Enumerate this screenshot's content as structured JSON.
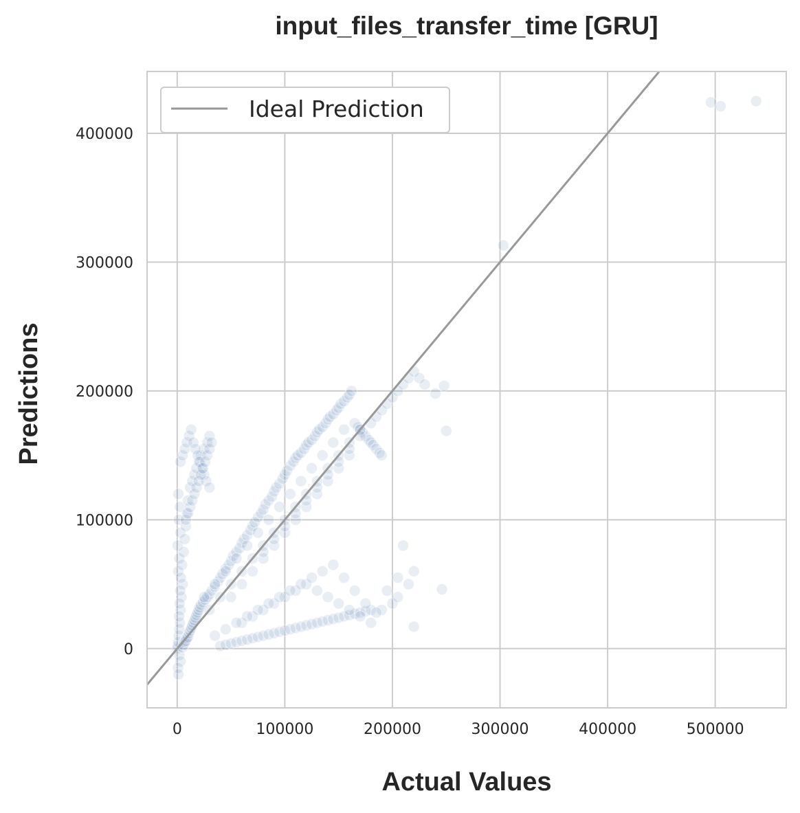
{
  "chart_data": {
    "type": "scatter",
    "title": "input_files_transfer_time [GRU]",
    "xlabel": "Actual Values",
    "ylabel": "Predictions",
    "xlim": [
      -28000,
      566000
    ],
    "ylim": [
      -46000,
      448000
    ],
    "xticks": [
      0,
      100000,
      200000,
      300000,
      400000,
      500000
    ],
    "xtick_labels": [
      "0",
      "100000",
      "200000",
      "300000",
      "400000",
      "500000"
    ],
    "yticks": [
      0,
      100000,
      200000,
      300000,
      400000
    ],
    "ytick_labels": [
      "0",
      "100000",
      "200000",
      "300000",
      "400000"
    ],
    "grid": true,
    "legend": {
      "position": "top-left",
      "entries": [
        "Ideal Prediction"
      ]
    },
    "colors": {
      "points": "#4c72b0",
      "ideal_line": "#999999",
      "grid": "#cccccc",
      "frame": "#cccccc"
    },
    "series": [
      {
        "name": "Ideal Prediction",
        "kind": "line",
        "x": [
          -28000,
          566000
        ],
        "y": [
          -28000,
          566000
        ]
      },
      {
        "kind": "scatter",
        "point_alpha": 0.12,
        "x": [
          0,
          500,
          1000,
          1500,
          2000,
          2500,
          3000,
          4000,
          5000,
          1000,
          2000,
          500,
          3000,
          1500,
          2500,
          1000,
          2000,
          3000,
          800,
          1200,
          1800,
          2200,
          2800,
          3500,
          4500,
          6000,
          7000,
          8000,
          9000,
          10000,
          12000,
          14000,
          16000,
          18000,
          20000,
          22000,
          25000,
          28000,
          30000,
          5000,
          6000,
          7000,
          8000,
          9000,
          10000,
          11000,
          12000,
          13000,
          14000,
          15000,
          16000,
          17000,
          18000,
          19000,
          20000,
          21000,
          22000,
          24000,
          26000,
          28000,
          30000,
          32000,
          35000,
          38000,
          40000,
          42000,
          45000,
          48000,
          50000,
          52000,
          55000,
          58000,
          60000,
          62000,
          65000,
          68000,
          70000,
          72000,
          75000,
          78000,
          80000,
          82000,
          85000,
          88000,
          90000,
          92000,
          95000,
          98000,
          100000,
          102000,
          105000,
          108000,
          110000,
          112000,
          115000,
          118000,
          120000,
          122000,
          125000,
          128000,
          130000,
          132000,
          135000,
          138000,
          140000,
          142000,
          145000,
          148000,
          150000,
          152000,
          155000,
          158000,
          160000,
          162000,
          165000,
          168000,
          170000,
          172000,
          175000,
          178000,
          180000,
          182000,
          185000,
          188000,
          190000,
          40000,
          45000,
          50000,
          55000,
          60000,
          65000,
          70000,
          75000,
          80000,
          85000,
          90000,
          95000,
          100000,
          105000,
          110000,
          115000,
          120000,
          125000,
          130000,
          135000,
          140000,
          145000,
          150000,
          155000,
          160000,
          165000,
          170000,
          175000,
          180000,
          60000,
          70000,
          80000,
          90000,
          100000,
          110000,
          120000,
          130000,
          140000,
          150000,
          160000,
          170000,
          180000,
          35000,
          45000,
          55000,
          65000,
          75000,
          85000,
          95000,
          105000,
          115000,
          125000,
          135000,
          145000,
          155000,
          165000,
          175000,
          50000,
          60000,
          70000,
          80000,
          90000,
          100000,
          110000,
          120000,
          130000,
          140000,
          150000,
          160000,
          30000,
          40000,
          50000,
          60000,
          70000,
          80000,
          90000,
          100000,
          110000,
          120000,
          130000,
          140000,
          150000,
          160000,
          170000,
          25000,
          35000,
          45000,
          55000,
          65000,
          75000,
          85000,
          95000,
          105000,
          115000,
          125000,
          135000,
          145000,
          155000,
          80000,
          90000,
          100000,
          110000,
          120000,
          130000,
          140000,
          150000,
          160000,
          170000,
          180000,
          185000,
          190000,
          195000,
          200000,
          205000,
          210000,
          215000,
          220000,
          225000,
          230000,
          240000,
          248000,
          250000,
          195000,
          200000,
          205000,
          210000,
          215000,
          220000,
          205000,
          190000,
          185000,
          246000,
          220000,
          303000,
          496000,
          505000,
          538000,
          3000,
          5000,
          7000,
          9000,
          11000,
          13000,
          15000,
          17000,
          19000,
          21000,
          23000,
          25000,
          27000,
          30000,
          8000,
          10000,
          12000,
          14000,
          16000,
          18000,
          20000,
          22000,
          24000,
          26000,
          28000,
          30000,
          32000
        ],
        "y": [
          0,
          2000,
          5000,
          10000,
          15000,
          20000,
          30000,
          40000,
          50000,
          60000,
          70000,
          80000,
          90000,
          100000,
          110000,
          120000,
          -5000,
          -10000,
          -15000,
          -20000,
          25000,
          35000,
          45000,
          55000,
          65000,
          75000,
          85000,
          95000,
          105000,
          115000,
          125000,
          130000,
          135000,
          140000,
          145000,
          150000,
          155000,
          160000,
          165000,
          1000,
          3000,
          5000,
          6000,
          8000,
          9000,
          12000,
          14000,
          16000,
          18000,
          20000,
          22000,
          24000,
          26000,
          28000,
          30000,
          32000,
          34000,
          36000,
          38000,
          40000,
          42000,
          45000,
          48000,
          52000,
          55000,
          58000,
          62000,
          65000,
          68000,
          72000,
          75000,
          78000,
          82000,
          85000,
          88000,
          92000,
          95000,
          98000,
          102000,
          105000,
          108000,
          112000,
          115000,
          118000,
          122000,
          125000,
          128000,
          132000,
          135000,
          138000,
          142000,
          145000,
          148000,
          150000,
          152000,
          155000,
          158000,
          160000,
          162000,
          165000,
          168000,
          170000,
          172000,
          175000,
          178000,
          180000,
          182000,
          185000,
          187000,
          190000,
          192000,
          195000,
          197000,
          200000,
          175000,
          172000,
          170000,
          168000,
          165000,
          162000,
          160000,
          158000,
          155000,
          152000,
          150000,
          2000,
          3000,
          4000,
          5000,
          6000,
          7000,
          8000,
          9000,
          10000,
          11000,
          12000,
          13000,
          14000,
          15000,
          16000,
          17000,
          18000,
          19000,
          20000,
          21000,
          22000,
          23000,
          24000,
          25000,
          26000,
          27000,
          28000,
          29000,
          30000,
          20000,
          25000,
          30000,
          35000,
          40000,
          45000,
          50000,
          45000,
          40000,
          35000,
          30000,
          25000,
          20000,
          10000,
          15000,
          20000,
          25000,
          30000,
          35000,
          40000,
          45000,
          50000,
          55000,
          60000,
          65000,
          55000,
          45000,
          35000,
          40000,
          50000,
          60000,
          70000,
          80000,
          90000,
          100000,
          110000,
          120000,
          130000,
          140000,
          150000,
          30000,
          40000,
          50000,
          60000,
          70000,
          80000,
          90000,
          100000,
          110000,
          120000,
          130000,
          140000,
          150000,
          160000,
          170000,
          40000,
          50000,
          60000,
          70000,
          80000,
          90000,
          100000,
          110000,
          120000,
          130000,
          140000,
          150000,
          160000,
          170000,
          75000,
          85000,
          95000,
          105000,
          115000,
          125000,
          135000,
          145000,
          155000,
          165000,
          175000,
          180000,
          185000,
          190000,
          195000,
          200000,
          205000,
          210000,
          215000,
          210000,
          205000,
          198000,
          204000,
          169000,
          45000,
          35000,
          55000,
          80000,
          50000,
          60000,
          40000,
          30000,
          28000,
          46000,
          17000,
          313000,
          424000,
          421000,
          425000,
          145000,
          150000,
          155000,
          160000,
          165000,
          170000,
          160000,
          155000,
          150000,
          145000,
          140000,
          135000,
          130000,
          125000,
          100000,
          105000,
          110000,
          115000,
          120000,
          125000,
          130000,
          135000,
          140000,
          145000,
          150000,
          155000,
          160000
        ]
      }
    ]
  }
}
